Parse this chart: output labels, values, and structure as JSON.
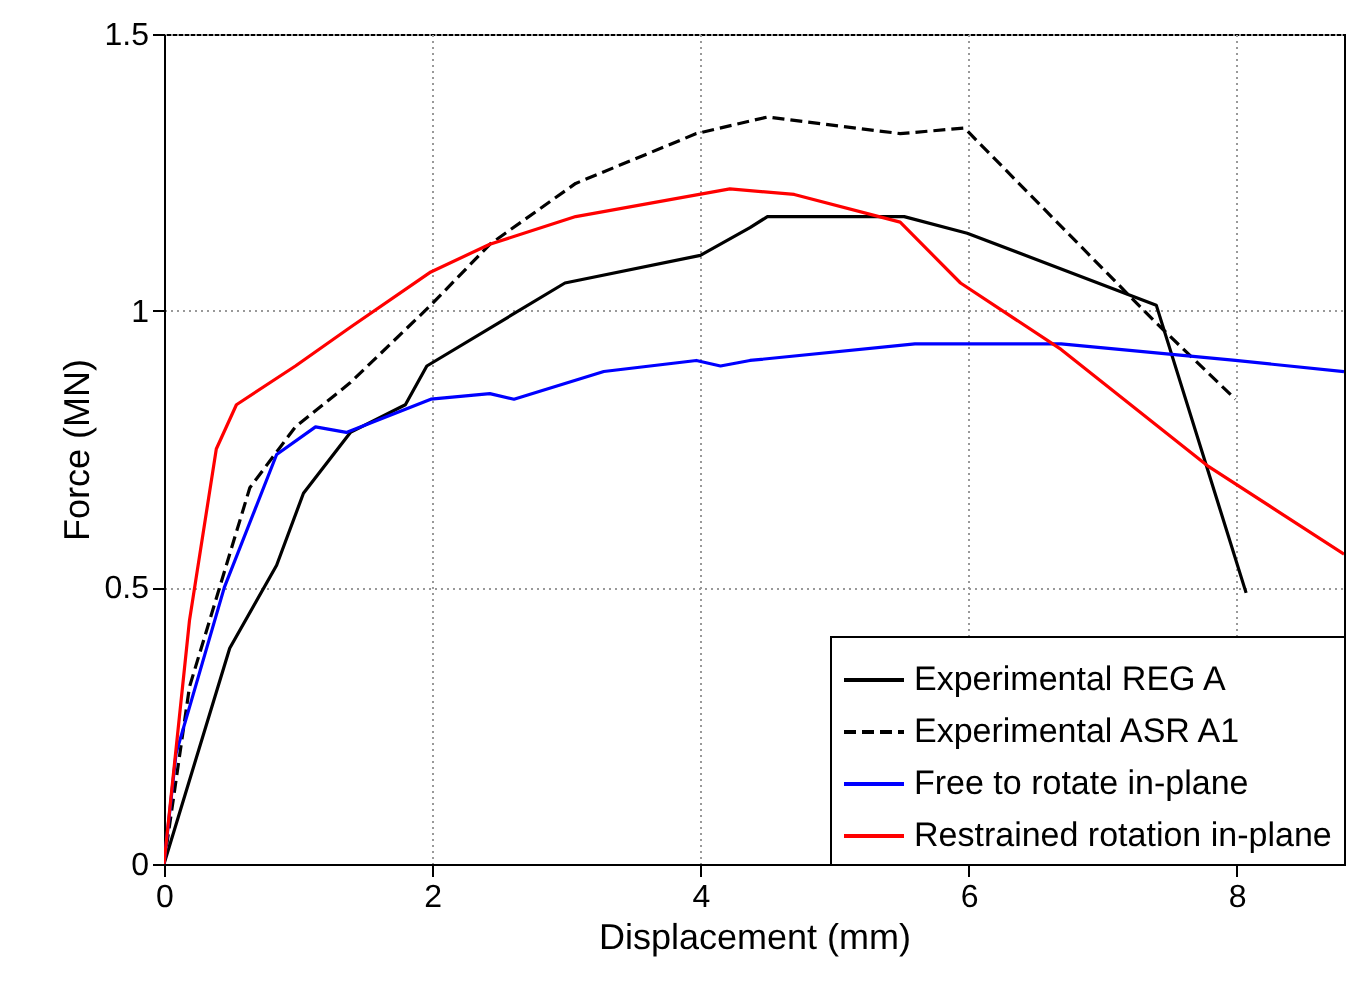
{
  "chart_data": {
    "type": "line",
    "xlabel": "Displacement (mm)",
    "ylabel": "Force (MN)",
    "xlim": [
      0,
      8.8
    ],
    "ylim": [
      0,
      1.5
    ],
    "xticks": [
      0,
      2,
      4,
      6,
      8
    ],
    "yticks": [
      0,
      0.5,
      1,
      1.5
    ],
    "grid": true,
    "legend": "bottom right",
    "series": [
      {
        "name": "Experimental REG A",
        "color": "#000000",
        "line_style": "solid",
        "x": [
          0,
          0.49,
          0.84,
          1.04,
          1.39,
          1.8,
          1.96,
          2.99,
          4.0,
          4.37,
          4.5,
          5.52,
          5.99,
          7.4,
          8.07
        ],
        "values": [
          0,
          0.39,
          0.54,
          0.67,
          0.78,
          0.83,
          0.9,
          1.05,
          1.1,
          1.15,
          1.17,
          1.17,
          1.14,
          1.01,
          0.49
        ]
      },
      {
        "name": "Experimental ASR A1",
        "color": "#000000",
        "line_style": "dashed",
        "x": [
          0,
          0.19,
          0.64,
          0.98,
          1.39,
          1.99,
          2.43,
          3.07,
          3.97,
          4.5,
          5.49,
          5.97,
          7.39,
          7.99
        ],
        "values": [
          0,
          0.32,
          0.68,
          0.79,
          0.87,
          1.01,
          1.12,
          1.23,
          1.32,
          1.35,
          1.32,
          1.33,
          0.98,
          0.84
        ]
      },
      {
        "name": "Free to rotate in-plane",
        "color": "#0000ff",
        "line_style": "solid",
        "x": [
          0,
          0.09,
          0.45,
          0.84,
          1.13,
          1.36,
          1.99,
          2.43,
          2.61,
          3.28,
          3.97,
          4.15,
          4.37,
          5.6,
          6.69,
          7.99,
          8.8
        ],
        "values": [
          0,
          0.2,
          0.5,
          0.74,
          0.79,
          0.78,
          0.84,
          0.85,
          0.84,
          0.89,
          0.91,
          0.9,
          0.91,
          0.94,
          0.94,
          0.91,
          0.89
        ]
      },
      {
        "name": "Restrained rotation in-plane",
        "color": "#ff0000",
        "line_style": "solid",
        "x": [
          0,
          0.19,
          0.39,
          0.54,
          0.98,
          1.39,
          1.99,
          2.43,
          3.07,
          4.22,
          4.7,
          5.49,
          5.94,
          6.69,
          7.78,
          8.8
        ],
        "values": [
          0,
          0.44,
          0.75,
          0.83,
          0.9,
          0.97,
          1.07,
          1.12,
          1.17,
          1.22,
          1.21,
          1.16,
          1.05,
          0.93,
          0.72,
          0.56
        ]
      }
    ]
  }
}
